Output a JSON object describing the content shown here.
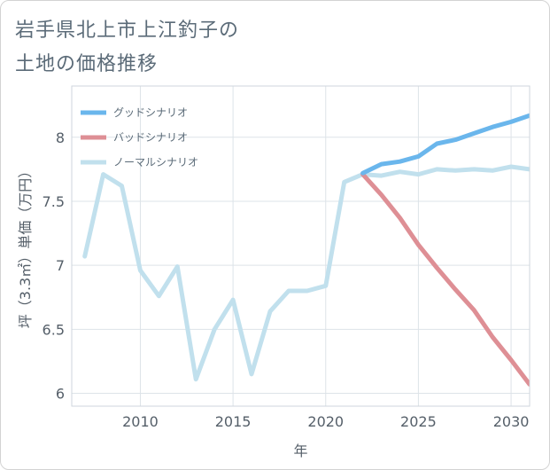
{
  "title_lines": [
    "岩手県北上市上江釣子の",
    "土地の価格推移"
  ],
  "chart_data": {
    "type": "line",
    "title": "岩手県北上市上江釣子の土地の価格推移",
    "xlabel": "年",
    "ylabel": "坪（3.3㎡）単価（万円）",
    "xlim": [
      2006.3,
      2031
    ],
    "ylim": [
      5.9,
      8.4
    ],
    "x_ticks": [
      2010,
      2015,
      2020,
      2025,
      2030
    ],
    "y_ticks": [
      6,
      6.5,
      7,
      7.5,
      8
    ],
    "grid": true,
    "legend_position": "top-left",
    "series": [
      {
        "name": "グッドシナリオ",
        "color": "#6ab6ec",
        "x": [
          2022,
          2023,
          2024,
          2025,
          2026,
          2027,
          2028,
          2029,
          2030,
          2031
        ],
        "values": [
          7.72,
          7.79,
          7.81,
          7.85,
          7.95,
          7.98,
          8.03,
          8.08,
          8.12,
          8.17
        ]
      },
      {
        "name": "バッドシナリオ",
        "color": "#de8f95",
        "x": [
          2022,
          2023,
          2024,
          2025,
          2026,
          2027,
          2028,
          2029,
          2030,
          2031
        ],
        "values": [
          7.71,
          7.55,
          7.37,
          7.16,
          6.98,
          6.81,
          6.65,
          6.44,
          6.26,
          6.07
        ]
      },
      {
        "name": "ノーマルシナリオ",
        "color": "#c1e0ed",
        "x": [
          2007,
          2008,
          2009,
          2010,
          2011,
          2012,
          2013,
          2014,
          2015,
          2016,
          2017,
          2018,
          2019,
          2020,
          2021,
          2022,
          2023,
          2024,
          2025,
          2026,
          2027,
          2028,
          2029,
          2030,
          2031
        ],
        "values": [
          7.07,
          7.71,
          7.62,
          6.96,
          6.76,
          6.99,
          6.11,
          6.5,
          6.73,
          6.15,
          6.64,
          6.8,
          6.8,
          6.84,
          7.65,
          7.71,
          7.7,
          7.73,
          7.71,
          7.75,
          7.74,
          7.75,
          7.74,
          7.77,
          7.75
        ]
      }
    ]
  }
}
